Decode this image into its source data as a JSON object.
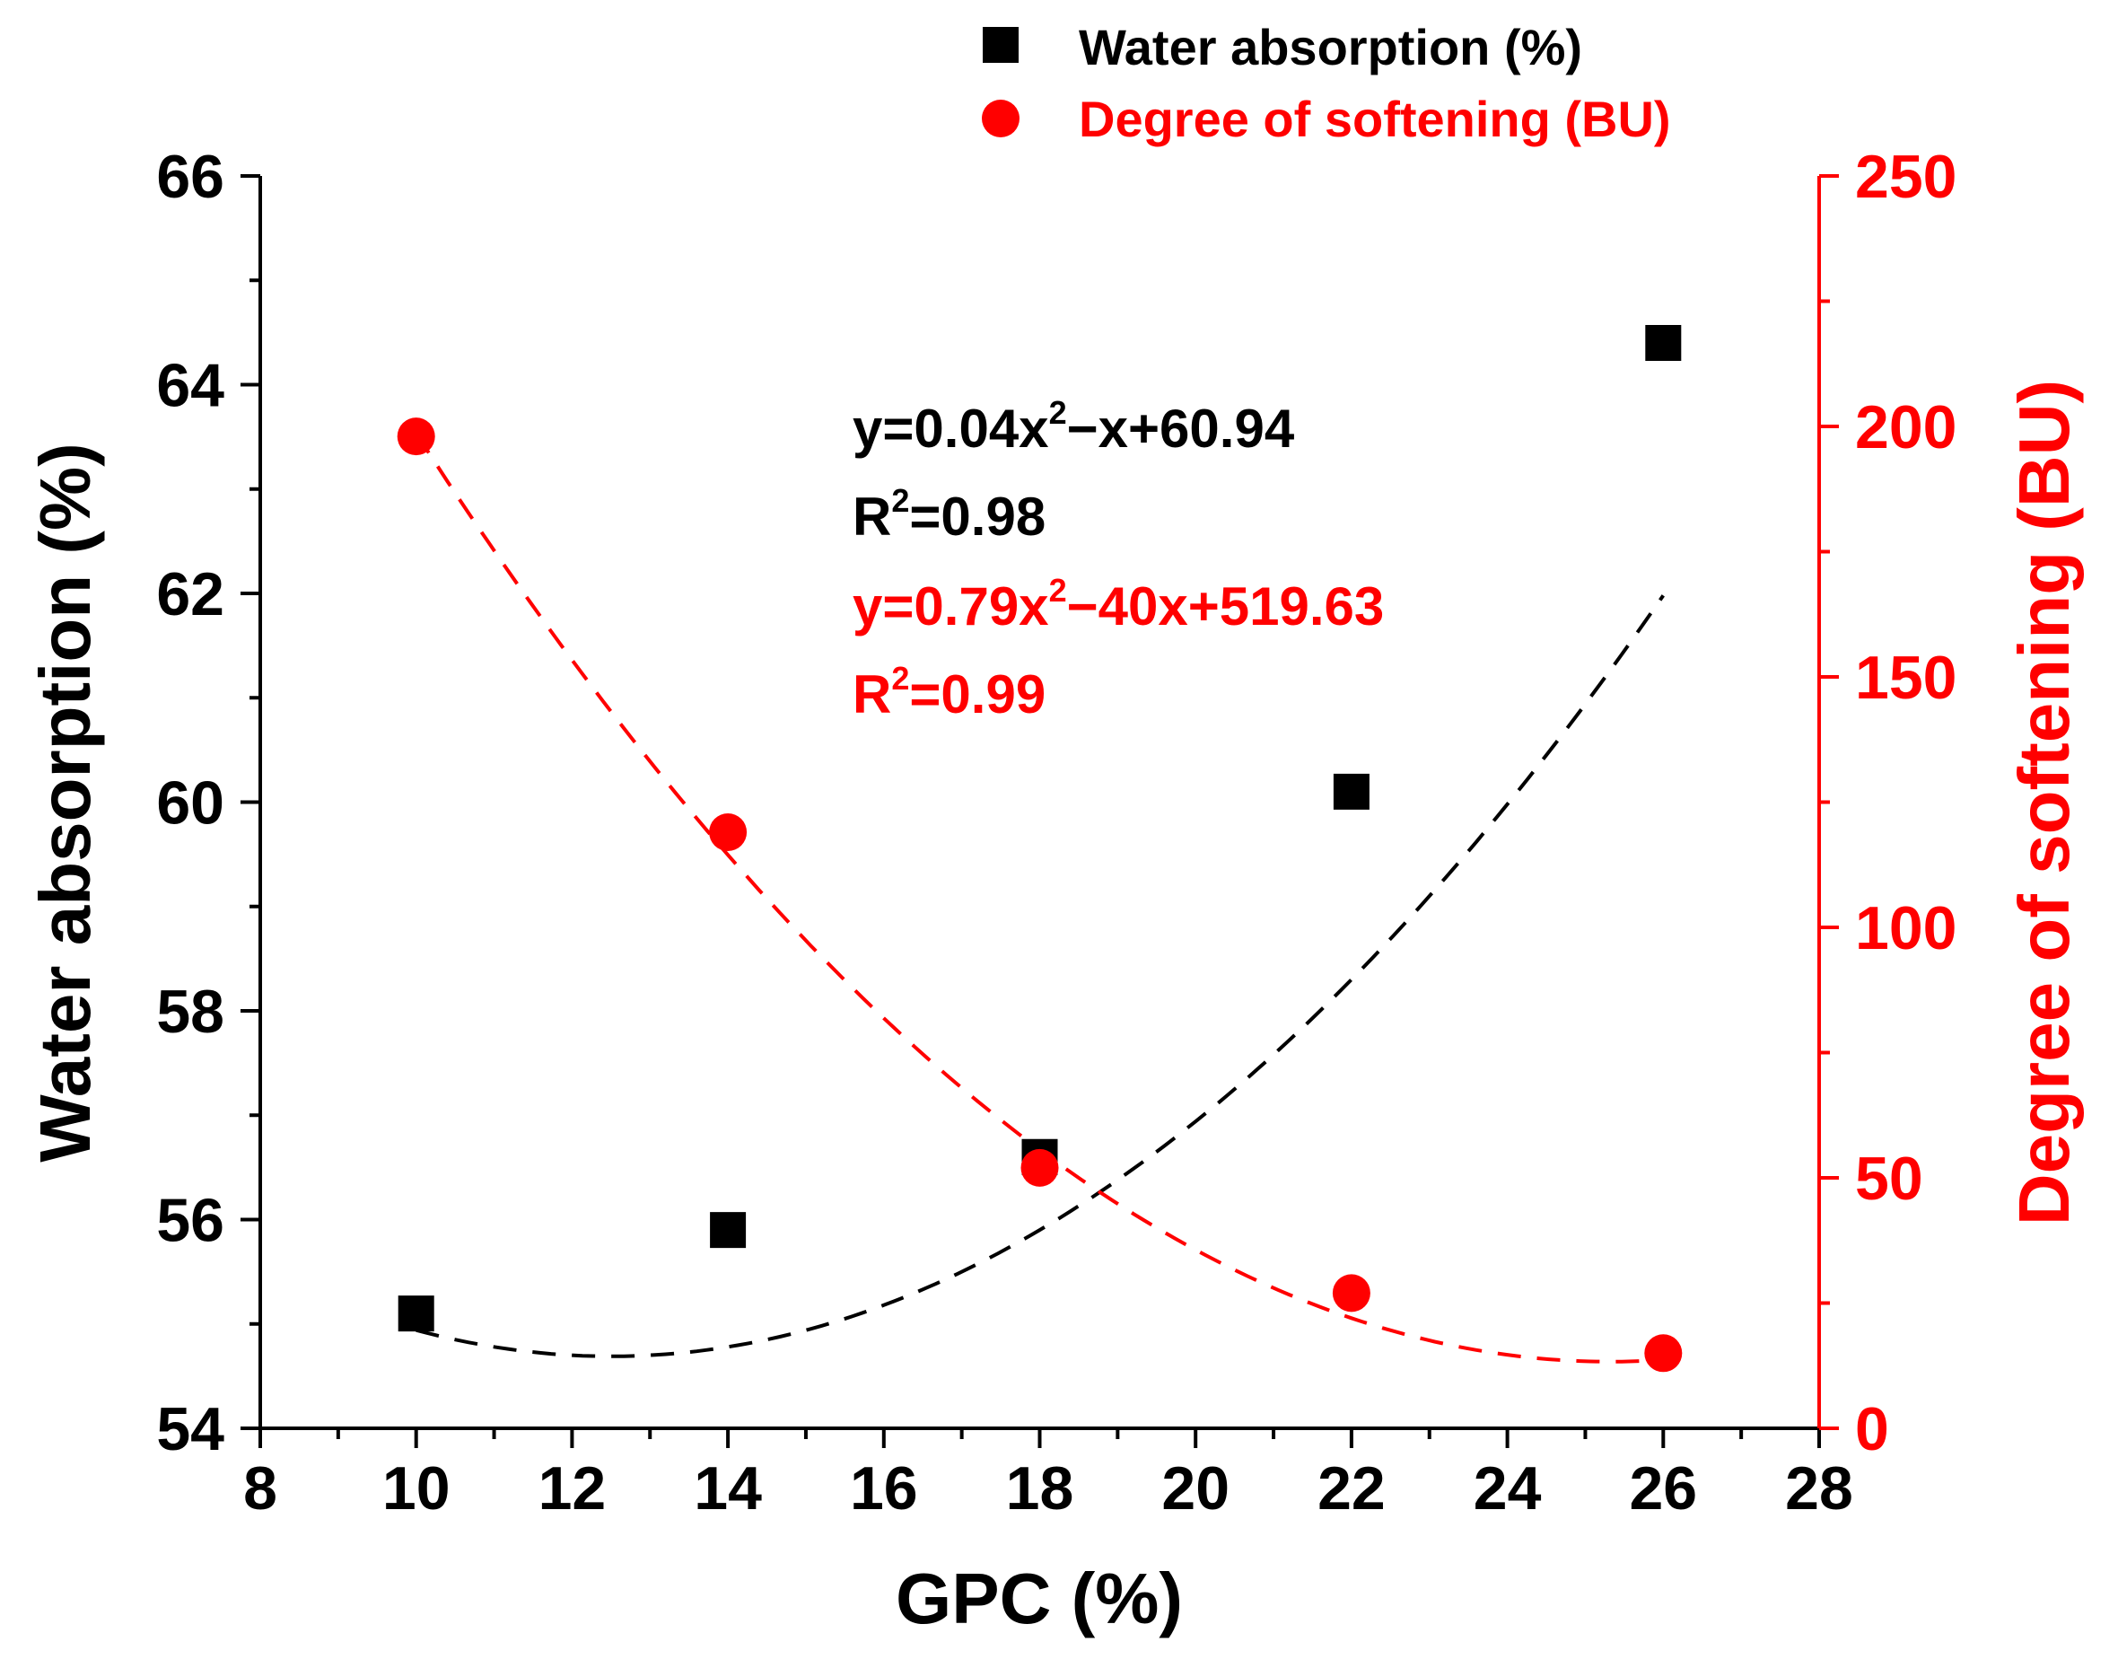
{
  "chart_data": {
    "type": "scatter",
    "x_label": "GPC (%)",
    "y_label": "Water absorption (%)",
    "y2_label": "Degree of softening (BU)",
    "xlim": [
      8,
      28
    ],
    "ylim": [
      54,
      66
    ],
    "y2lim": [
      0,
      250
    ],
    "x_ticks": [
      "8",
      "10",
      "12",
      "14",
      "16",
      "18",
      "20",
      "22",
      "24",
      "26",
      "28"
    ],
    "y_ticks": [
      "54",
      "56",
      "58",
      "60",
      "62",
      "64",
      "66"
    ],
    "y2_ticks": [
      "0",
      "50",
      "100",
      "150",
      "200",
      "250"
    ],
    "colors": {
      "primary": "#000000",
      "secondary": "#ff0000"
    },
    "series": [
      {
        "name": "Water absorption (%)",
        "axis": "left",
        "marker": "square",
        "color": "#000000",
        "x": [
          10,
          14,
          18,
          22,
          26
        ],
        "y": [
          55.1,
          55.9,
          56.6,
          60.1,
          64.4
        ],
        "fit": {
          "a": 0.04,
          "b": -1,
          "c": 60.94,
          "equation": "y=0.04x²−x+60.94",
          "r2": "R²=0.98"
        }
      },
      {
        "name": "Degree of softening (BU)",
        "axis": "right",
        "marker": "circle",
        "color": "#ff0000",
        "x": [
          10,
          14,
          18,
          22,
          26
        ],
        "y": [
          198,
          119,
          52,
          27,
          15
        ],
        "fit": {
          "a": 0.79,
          "b": -40,
          "c": 519.63,
          "equation": "y=0.79x²−40x+519.63",
          "r2": "R²=0.99"
        }
      }
    ],
    "legend": {
      "position": "top-right",
      "entries": [
        "Water absorption (%)",
        "Degree of softening (BU)"
      ]
    },
    "annotations": {
      "eq1": {
        "main": "y=0.04x",
        "sup": "2",
        "rest": "−x+60.94"
      },
      "r2_1": {
        "main": "R",
        "sup": "2",
        "rest": "=0.98"
      },
      "eq2": {
        "main": "y=0.79x",
        "sup": "2",
        "rest": "−40x+519.63"
      },
      "r2_2": {
        "main": "R",
        "sup": "2",
        "rest": "=0.99"
      }
    }
  }
}
